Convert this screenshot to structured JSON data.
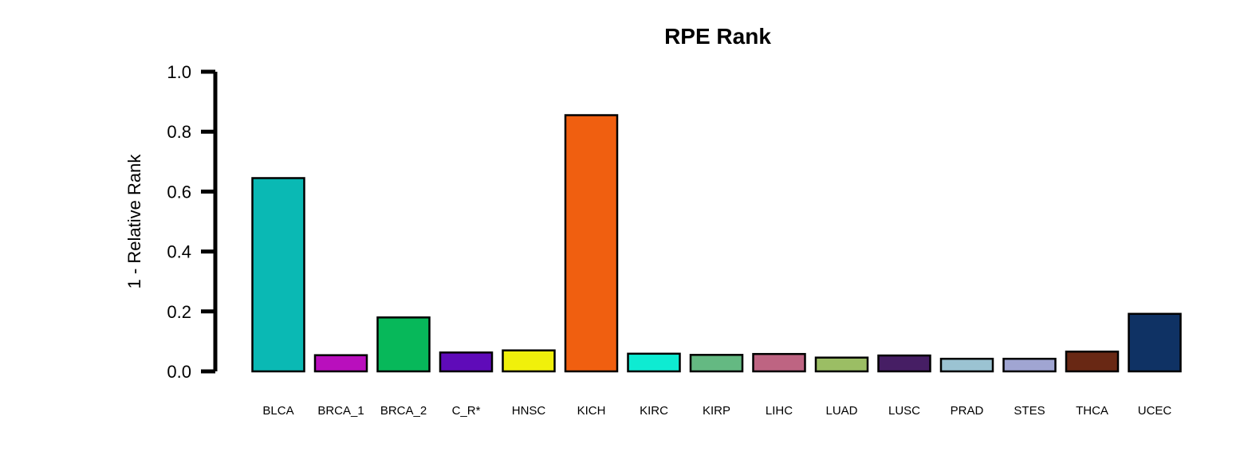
{
  "chart_data": {
    "type": "bar",
    "title": "RPE Rank",
    "xlabel": "",
    "ylabel": "1 - Relative Rank",
    "ylim": [
      0,
      1.0
    ],
    "yticks": [
      "0.0",
      "0.2",
      "0.4",
      "0.6",
      "0.8",
      "1.0"
    ],
    "grid": false,
    "categories": [
      "BLCA",
      "BRCA_1",
      "BRCA_2",
      "C_R*",
      "HNSC",
      "KICH",
      "KIRC",
      "KIRP",
      "LIHC",
      "LUAD",
      "LUSC",
      "PRAD",
      "STES",
      "THCA",
      "UCEC"
    ],
    "values": [
      0.645,
      0.054,
      0.18,
      0.063,
      0.07,
      0.855,
      0.059,
      0.055,
      0.058,
      0.046,
      0.053,
      0.042,
      0.042,
      0.066,
      0.192
    ],
    "colors": [
      "#0ab9b4",
      "#b90fbd",
      "#07b85a",
      "#5f0bb9",
      "#f0f00b",
      "#f05f10",
      "#0eebd2",
      "#64b982",
      "#be6482",
      "#9bbe64",
      "#461e64",
      "#9bc3d2",
      "#a0a5d2",
      "#692814",
      "#0f3264"
    ]
  }
}
